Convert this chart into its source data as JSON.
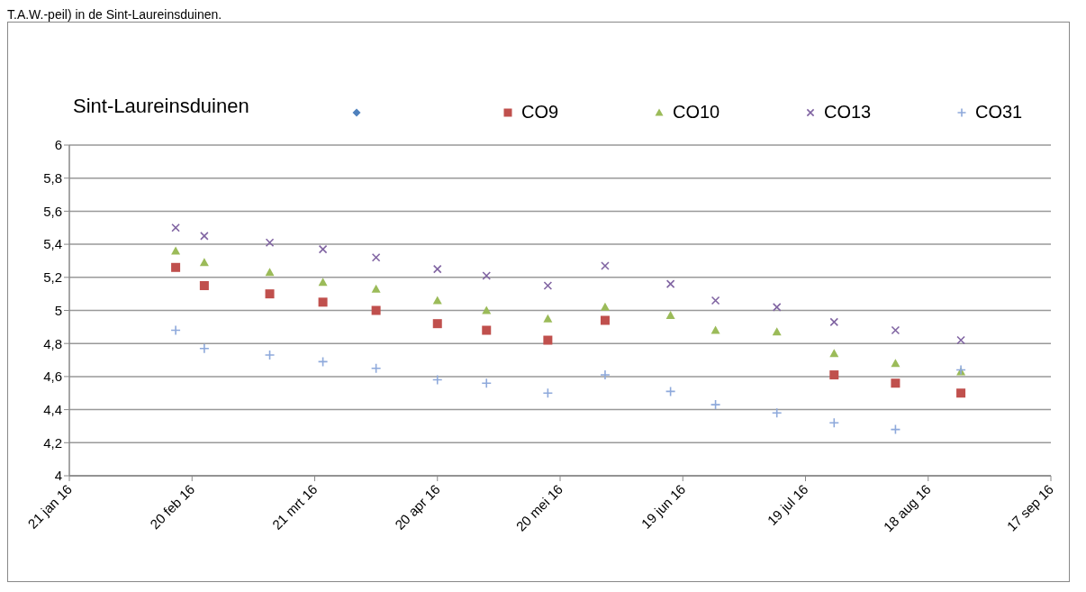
{
  "chart_data": {
    "type": "scatter",
    "title": "Sint-Laureinsduinen",
    "annotations": [
      "T.A.W.-peil) in de Sint-Laureinsduinen."
    ],
    "x": [
      "2016-02-16",
      "2016-02-23",
      "2016-03-10",
      "2016-03-23",
      "2016-04-05",
      "2016-04-20",
      "2016-05-02",
      "2016-05-17",
      "2016-05-31",
      "2016-06-16",
      "2016-06-27",
      "2016-07-12",
      "2016-07-26",
      "2016-08-10",
      "2016-08-26"
    ],
    "series": [
      {
        "color": "#4f81bd",
        "marker": "diamond",
        "values": [
          null,
          null,
          null,
          null,
          null,
          null,
          null,
          null,
          null,
          null,
          null,
          null,
          null,
          null,
          null
        ]
      },
      {
        "name": "CO9",
        "color": "#c0504d",
        "marker": "square",
        "values": [
          5.26,
          5.15,
          5.1,
          5.05,
          5.0,
          4.92,
          4.88,
          4.82,
          4.94,
          null,
          null,
          null,
          4.61,
          4.56,
          4.5
        ]
      },
      {
        "name": "CO10",
        "color": "#9bbb59",
        "marker": "triangle",
        "values": [
          5.36,
          5.29,
          5.23,
          5.17,
          5.13,
          5.06,
          5.0,
          4.95,
          5.02,
          4.97,
          4.88,
          4.87,
          4.74,
          4.68,
          4.63
        ]
      },
      {
        "name": "CO13",
        "color": "#8064a2",
        "marker": "x",
        "values": [
          5.5,
          5.45,
          5.41,
          5.37,
          5.32,
          5.25,
          5.21,
          5.15,
          5.27,
          5.16,
          5.06,
          5.02,
          4.93,
          4.88,
          4.82
        ]
      },
      {
        "name": "CO31",
        "color": "#8ea9db",
        "marker": "cross",
        "values": [
          4.88,
          4.77,
          4.73,
          4.69,
          4.65,
          4.58,
          4.56,
          4.5,
          4.61,
          4.51,
          4.43,
          4.38,
          4.32,
          4.28,
          4.64
        ]
      }
    ],
    "xlim": [
      "2016-01-21",
      "2016-09-17"
    ],
    "xticks": [
      {
        "value": "2016-01-21",
        "label": "21 jan 16"
      },
      {
        "value": "2016-02-20",
        "label": "20 feb 16"
      },
      {
        "value": "2016-03-21",
        "label": "21 mrt 16"
      },
      {
        "value": "2016-04-20",
        "label": "20 apr 16"
      },
      {
        "value": "2016-05-20",
        "label": "20 mei 16"
      },
      {
        "value": "2016-06-19",
        "label": "19 jun 16"
      },
      {
        "value": "2016-07-19",
        "label": "19 jul 16"
      },
      {
        "value": "2016-08-18",
        "label": "18 aug 16"
      },
      {
        "value": "2016-09-17",
        "label": "17 sep 16"
      }
    ],
    "ylim": [
      4,
      6
    ],
    "yticks": [
      {
        "value": 4,
        "label": "4"
      },
      {
        "value": 4.2,
        "label": "4,2"
      },
      {
        "value": 4.4,
        "label": "4,4"
      },
      {
        "value": 4.6,
        "label": "4,6"
      },
      {
        "value": 4.8,
        "label": "4,8"
      },
      {
        "value": 5,
        "label": "5"
      },
      {
        "value": 5.2,
        "label": "5,2"
      },
      {
        "value": 5.4,
        "label": "5,4"
      },
      {
        "value": 5.6,
        "label": "5,6"
      },
      {
        "value": 5.8,
        "label": "5,8"
      },
      {
        "value": 6,
        "label": "6"
      }
    ],
    "grid": "y",
    "legend": "top"
  }
}
